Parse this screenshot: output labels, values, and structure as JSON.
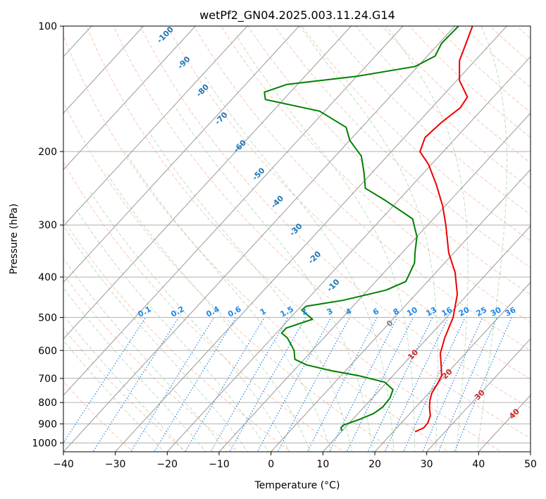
{
  "chart_data": {
    "type": "skew-t",
    "title": "wetPf2_GN04.2025.003.11.24.G14",
    "xlabel": "Temperature (°C)",
    "ylabel": "Pressure (hPa)",
    "xlim": [
      -40,
      50
    ],
    "ylim": [
      1050,
      100
    ],
    "y_scale": "log",
    "grid": true,
    "x_ticks": [
      "−40",
      "−30",
      "−20",
      "−10",
      "0",
      "10",
      "20",
      "30",
      "40",
      "50"
    ],
    "y_ticks": [
      {
        "p": 100,
        "label": "100"
      },
      {
        "p": 200,
        "label": "200"
      },
      {
        "p": 300,
        "label": "300"
      },
      {
        "p": 400,
        "label": "400"
      },
      {
        "p": 500,
        "label": "500"
      },
      {
        "p": 600,
        "label": "600"
      },
      {
        "p": 700,
        "label": "700"
      },
      {
        "p": 800,
        "label": "800"
      },
      {
        "p": 900,
        "label": "900"
      },
      {
        "p": 1000,
        "label": "1000"
      }
    ],
    "colors": {
      "temperature": "#ee0000",
      "dewpoint": "#008000",
      "isotherm": "#999999",
      "dry_adiabat": "#f4a582",
      "moist_adiabat": "#88c288",
      "mixing_ratio": "#1f88e5",
      "isotherm_label": "#1f77b4",
      "mixing_label": "#1f88e5",
      "warm_label": "#d62728",
      "zero_label": "#808080"
    },
    "series": [
      {
        "key": "temperature",
        "points": [
          {
            "p": 940,
            "t": 24.2
          },
          {
            "p": 920,
            "t": 25.2
          },
          {
            "p": 895,
            "t": 25.1
          },
          {
            "p": 860,
            "t": 24.3
          },
          {
            "p": 820,
            "t": 22.6
          },
          {
            "p": 790,
            "t": 21.5
          },
          {
            "p": 760,
            "t": 20.6
          },
          {
            "p": 720,
            "t": 20.0
          },
          {
            "p": 690,
            "t": 19.4
          },
          {
            "p": 650,
            "t": 17.4
          },
          {
            "p": 610,
            "t": 15.2
          },
          {
            "p": 560,
            "t": 13.3
          },
          {
            "p": 500,
            "t": 11.3
          },
          {
            "p": 440,
            "t": 8.0
          },
          {
            "p": 390,
            "t": 3.7
          },
          {
            "p": 350,
            "t": -1.0
          },
          {
            "p": 300,
            "t": -6.5
          },
          {
            "p": 270,
            "t": -10.5
          },
          {
            "p": 240,
            "t": -15.5
          },
          {
            "p": 215,
            "t": -20.5
          },
          {
            "p": 200,
            "t": -24.5
          },
          {
            "p": 185,
            "t": -26.0
          },
          {
            "p": 170,
            "t": -25.5
          },
          {
            "p": 157,
            "t": -24.5
          },
          {
            "p": 148,
            "t": -25.0
          },
          {
            "p": 135,
            "t": -29.5
          },
          {
            "p": 121,
            "t": -33.0
          },
          {
            "p": 110,
            "t": -34.8
          },
          {
            "p": 100,
            "t": -36.6
          }
        ]
      },
      {
        "key": "dewpoint",
        "points": [
          {
            "p": 935,
            "t": 10.0
          },
          {
            "p": 920,
            "t": 9.2
          },
          {
            "p": 905,
            "t": 9.3
          },
          {
            "p": 880,
            "t": 11.2
          },
          {
            "p": 850,
            "t": 13.0
          },
          {
            "p": 820,
            "t": 13.6
          },
          {
            "p": 780,
            "t": 13.4
          },
          {
            "p": 745,
            "t": 12.5
          },
          {
            "p": 715,
            "t": 9.6
          },
          {
            "p": 690,
            "t": 3.5
          },
          {
            "p": 670,
            "t": -3.0
          },
          {
            "p": 650,
            "t": -8.5
          },
          {
            "p": 630,
            "t": -11.8
          },
          {
            "p": 600,
            "t": -13.5
          },
          {
            "p": 560,
            "t": -17.0
          },
          {
            "p": 545,
            "t": -19.0
          },
          {
            "p": 530,
            "t": -19.0
          },
          {
            "p": 505,
            "t": -15.5
          },
          {
            "p": 480,
            "t": -19.2
          },
          {
            "p": 470,
            "t": -19.0
          },
          {
            "p": 455,
            "t": -13.0
          },
          {
            "p": 430,
            "t": -6.5
          },
          {
            "p": 410,
            "t": -4.2
          },
          {
            "p": 370,
            "t": -5.8
          },
          {
            "p": 350,
            "t": -7.5
          },
          {
            "p": 320,
            "t": -10.0
          },
          {
            "p": 290,
            "t": -14.0
          },
          {
            "p": 262,
            "t": -22.5
          },
          {
            "p": 245,
            "t": -28.5
          },
          {
            "p": 225,
            "t": -31.5
          },
          {
            "p": 205,
            "t": -35.0
          },
          {
            "p": 188,
            "t": -40.0
          },
          {
            "p": 175,
            "t": -43.0
          },
          {
            "p": 160,
            "t": -51.0
          },
          {
            "p": 150,
            "t": -63.5
          },
          {
            "p": 144,
            "t": -65.0
          },
          {
            "p": 138,
            "t": -62.0
          },
          {
            "p": 132,
            "t": -50.0
          },
          {
            "p": 125,
            "t": -40.5
          },
          {
            "p": 118,
            "t": -38.5
          },
          {
            "p": 110,
            "t": -39.5
          },
          {
            "p": 100,
            "t": -39.3
          }
        ]
      }
    ],
    "isotherm_labels": [
      {
        "t": -100,
        "label": "-100"
      },
      {
        "t": -90,
        "label": "-90"
      },
      {
        "t": -80,
        "label": "-80"
      },
      {
        "t": -70,
        "label": "-70"
      },
      {
        "t": -60,
        "label": "-60"
      },
      {
        "t": -50,
        "label": "-50"
      },
      {
        "t": -40,
        "label": "-40"
      },
      {
        "t": -30,
        "label": "-30"
      },
      {
        "t": -20,
        "label": "-20"
      },
      {
        "t": -10,
        "label": "-10"
      }
    ],
    "warm_labels": [
      {
        "t": 0,
        "p": 522,
        "label": "0"
      },
      {
        "t": 10,
        "p": 620,
        "label": "10"
      },
      {
        "t": 20,
        "p": 690,
        "label": "20"
      },
      {
        "t": 30,
        "p": 775,
        "label": "30"
      },
      {
        "t": 40,
        "p": 860,
        "label": "40"
      }
    ],
    "mixing_ratios": [
      {
        "w": 0.1,
        "label": "0.1"
      },
      {
        "w": 0.2,
        "label": "0.2"
      },
      {
        "w": 0.4,
        "label": "0.4"
      },
      {
        "w": 0.6,
        "label": "0.6"
      },
      {
        "w": 1,
        "label": "1"
      },
      {
        "w": 1.5,
        "label": "1.5"
      },
      {
        "w": 2,
        "label": "2"
      },
      {
        "w": 3,
        "label": "3"
      },
      {
        "w": 4,
        "label": "4"
      },
      {
        "w": 6,
        "label": "6"
      },
      {
        "w": 8,
        "label": "8"
      },
      {
        "w": 10,
        "label": "10"
      },
      {
        "w": 13,
        "label": "13"
      },
      {
        "w": 16,
        "label": "16"
      },
      {
        "w": 20,
        "label": "20"
      },
      {
        "w": 25,
        "label": "25"
      },
      {
        "w": 30,
        "label": "30"
      },
      {
        "w": 36,
        "label": "36"
      }
    ]
  }
}
